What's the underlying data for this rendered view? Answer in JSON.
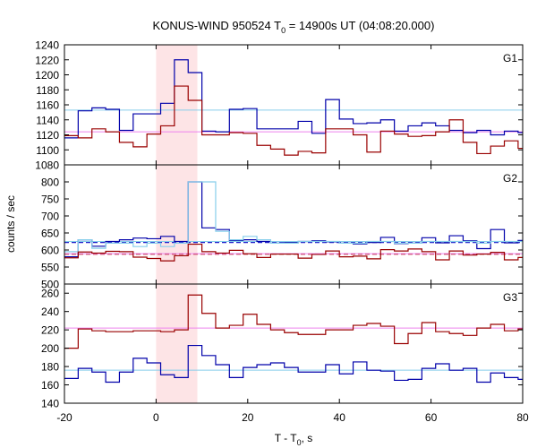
{
  "chart_data": {
    "type": "line",
    "title_main": "KONUS-WIND 950524 T",
    "title_sub": "0",
    "title_rest": " = 14900s UT (04:08:20.000)",
    "xlabel_main": "T - T",
    "xlabel_sub": "0",
    "xlabel_rest": ", s",
    "ylabel": "counts / sec",
    "xlim": [
      -20,
      80
    ],
    "x_ticks": [
      "-20",
      "0",
      "20",
      "40",
      "60",
      "80"
    ],
    "highlight_interval": [
      0,
      9
    ],
    "panels": [
      {
        "label": "G1",
        "ylim": [
          1080,
          1240
        ],
        "y_ticks": [
          "1080",
          "1100",
          "1120",
          "1140",
          "1160",
          "1180",
          "1200",
          "1220",
          "1240"
        ],
        "background_levels": [
          {
            "value": 1153,
            "color": "#87ceeb"
          },
          {
            "value": 1124,
            "color": "#ee82ee"
          }
        ],
        "series": [
          {
            "color": "#0000aa",
            "x_start": -20,
            "bin_width": 3,
            "values": [
              1116,
              1152,
              1156,
              1154,
              1126,
              1148,
              1148,
              1162,
              1220,
              1203,
              1125,
              1124,
              1154,
              1155,
              1128,
              1128,
              1128,
              1138,
              1122,
              1167,
              1141,
              1135,
              1136,
              1140,
              1125,
              1132,
              1136,
              1132,
              1126,
              1123,
              1126,
              1120,
              1125,
              1123,
              1125,
              1149
            ]
          },
          {
            "color": "#990000",
            "x_start": -20,
            "bin_width": 3,
            "values": [
              1119,
              1116,
              1128,
              1124,
              1110,
              1104,
              1121,
              1132,
              1185,
              1166,
              1120,
              1120,
              1123,
              1122,
              1106,
              1101,
              1093,
              1098,
              1096,
              1128,
              1128,
              1120,
              1097,
              1125,
              1121,
              1118,
              1119,
              1124,
              1140,
              1110,
              1095,
              1105,
              1112,
              1102,
              1127,
              1143
            ]
          }
        ]
      },
      {
        "label": "G2",
        "ylim": [
          500,
          850
        ],
        "y_ticks": [
          "500",
          "550",
          "600",
          "650",
          "700",
          "750",
          "800"
        ],
        "background_levels": [
          {
            "value": 622,
            "color": "#2222cc",
            "dashed": true
          },
          {
            "value": 588,
            "color": "#aa0000",
            "dashed": true
          },
          {
            "value": 625,
            "color": "#87ceeb"
          },
          {
            "value": 589,
            "color": "#ee82ee"
          }
        ],
        "series": [
          {
            "color": "#0000aa",
            "x_start": -20,
            "bin_width": 3,
            "values": [
              580,
              630,
              611,
              625,
              630,
              635,
              633,
              640,
              625,
              800,
              665,
              660,
              628,
              630,
              625,
              620,
              622,
              625,
              627,
              624,
              620,
              618,
              622,
              637,
              619,
              620,
              636,
              621,
              642,
              627,
              604,
              660,
              621,
              628,
              620,
              608
            ]
          },
          {
            "color": "#87ceeb",
            "x_start": -20,
            "bin_width": 3,
            "values": [
              595,
              630,
              605,
              620,
              620,
              610,
              620,
              610,
              620,
              800,
              800,
              655,
              630,
              640,
              630,
              620,
              620,
              625,
              625,
              625,
              620,
              620,
              625,
              625,
              620,
              620,
              625,
              625,
              625,
              625,
              620,
              625,
              625,
              625,
              620,
              620
            ]
          },
          {
            "color": "#990000",
            "x_start": -20,
            "bin_width": 3,
            "values": [
              577,
              594,
              591,
              596,
              595,
              579,
              575,
              568,
              583,
              617,
              595,
              591,
              599,
              589,
              578,
              588,
              588,
              576,
              587,
              597,
              580,
              582,
              574,
              601,
              597,
              603,
              595,
              571,
              597,
              585,
              588,
              593,
              571,
              578,
              585,
              598
            ]
          }
        ]
      },
      {
        "label": "G3",
        "ylim": [
          140,
          270
        ],
        "y_ticks": [
          "140",
          "160",
          "180",
          "200",
          "220",
          "240",
          "260"
        ],
        "background_levels": [
          {
            "value": 222,
            "color": "#ee82ee"
          },
          {
            "value": 176,
            "color": "#87ceeb"
          }
        ],
        "series": [
          {
            "color": "#0000aa",
            "x_start": -20,
            "bin_width": 3,
            "values": [
              167,
              178,
              174,
              163,
              174,
              189,
              184,
              171,
              168,
              203,
              192,
              182,
              168,
              179,
              182,
              184,
              179,
              174,
              174,
              182,
              172,
              185,
              176,
              175,
              165,
              166,
              178,
              183,
              176,
              178,
              163,
              173,
              168,
              166,
              171,
              174
            ]
          },
          {
            "color": "#990000",
            "x_start": -20,
            "bin_width": 3,
            "values": [
              200,
              221,
              219,
              218,
              218,
              219,
              219,
              218,
              220,
              258,
              238,
              222,
              225,
              237,
              226,
              220,
              217,
              215,
              215,
              220,
              220,
              225,
              227,
              224,
              205,
              216,
              228,
              218,
              216,
              214,
              222,
              226,
              219,
              221,
              224,
              220
            ]
          }
        ]
      }
    ]
  }
}
